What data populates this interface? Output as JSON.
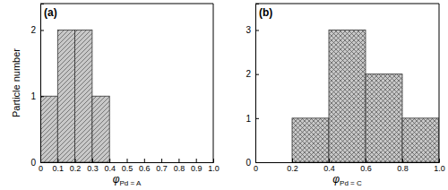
{
  "chart_data": [
    {
      "type": "histogram",
      "title": "(a)",
      "x_label": "φPd = A",
      "y_label": "Particle number",
      "bins": [
        0,
        0.1,
        0.2,
        0.3,
        0.4
      ],
      "values": [
        1,
        2,
        2,
        1
      ],
      "color": "#c8c8c8",
      "xlim": [
        0,
        1
      ],
      "xticks": [
        0,
        0.1,
        0.2,
        0.3,
        0.4,
        0.5,
        0.6,
        0.7,
        0.8,
        0.9,
        {
          "value": 1,
          "label": "1.0"
        }
      ],
      "ylim": [
        0,
        2.4
      ],
      "yticks": [
        0,
        1,
        2
      ]
    },
    {
      "type": "histogram",
      "title": "(b)",
      "x_label": "φPd = C",
      "bins": [
        0.2,
        0.4,
        0.6,
        0.8,
        1
      ],
      "values": [
        1,
        3,
        2,
        1
      ],
      "color": "#c8c8c8",
      "xlim": [
        0,
        1
      ],
      "xticks": [
        0,
        0.2,
        0.4,
        0.6,
        0.8,
        {
          "value": 1,
          "label": "1.0"
        }
      ],
      "ylim": [
        0,
        3.6
      ],
      "yticks": [
        0,
        1,
        2,
        3
      ]
    }
  ]
}
